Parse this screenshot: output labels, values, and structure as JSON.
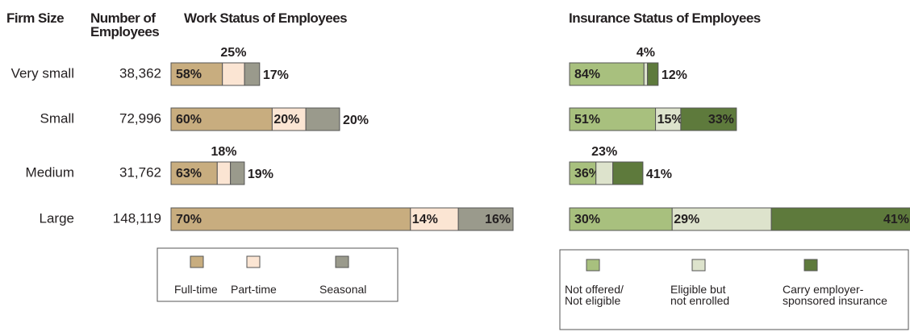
{
  "firm_size": {
    "header": "Firm Size",
    "categories": [
      "Very small",
      "Small",
      "Medium",
      "Large"
    ]
  },
  "employees": {
    "header": "Number of Employees",
    "values": [
      38362,
      72996,
      31762,
      148119
    ],
    "value_labels": [
      "38,362",
      "72,996",
      "31,762",
      "148,119"
    ]
  },
  "chart_data": [
    {
      "type": "bar",
      "stacked": true,
      "title": "Work Status of Employees",
      "series": [
        {
          "name": "Full-time",
          "color": "#c8ad7f",
          "values": [
            58,
            60,
            63,
            70
          ],
          "value_labels": [
            "58%",
            "60%",
            "63%",
            "70%"
          ]
        },
        {
          "name": "Part-time",
          "color": "#fbe5d3",
          "values": [
            25,
            20,
            18,
            14
          ],
          "value_labels": [
            "25%",
            "20%",
            "18%",
            "14%"
          ]
        },
        {
          "name": "Seasonal",
          "color": "#9a9a8c",
          "values": [
            17,
            20,
            19,
            16
          ],
          "value_labels": [
            "17%",
            "20%",
            "19%",
            "16%"
          ]
        }
      ]
    },
    {
      "type": "bar",
      "stacked": true,
      "title": "Insurance Status of Employees",
      "series": [
        {
          "name": "Not offered/ Not eligible",
          "color": "#a8c07e",
          "values": [
            84,
            51,
            36,
            30
          ],
          "value_labels": [
            "84%",
            "51%",
            "36%",
            "30%"
          ]
        },
        {
          "name": "Eligible but not enrolled",
          "color": "#dde3cc",
          "values": [
            4,
            15,
            23,
            29
          ],
          "value_labels": [
            "4%",
            "15%",
            "23%",
            "29%"
          ]
        },
        {
          "name": "Carry employer-sponsored insurance",
          "color": "#5e7a3c",
          "label_color": "#ffffff",
          "values": [
            12,
            33,
            41,
            41
          ],
          "value_labels": [
            "12%",
            "33%",
            "41%",
            "41%"
          ]
        }
      ]
    }
  ]
}
